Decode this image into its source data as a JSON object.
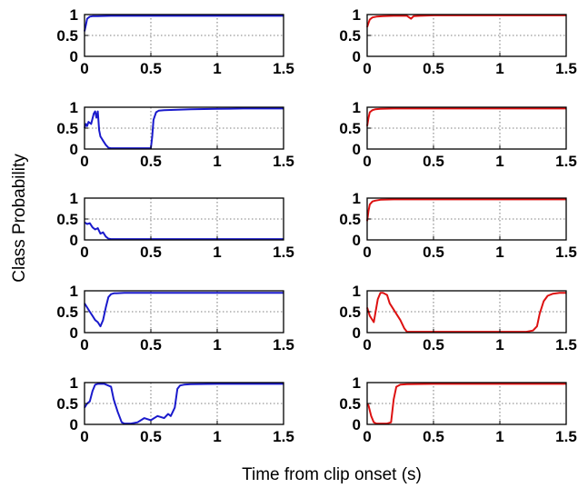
{
  "figure": {
    "ylabel": "Class Probability",
    "xlabel": "Time from clip onset (s)"
  },
  "chart_data": {
    "type": "line",
    "layout": "5 rows x 2 columns of small multiples",
    "xlabel": "Time from clip onset (s)",
    "ylabel": "Class Probability",
    "xlim": [
      0,
      1.5
    ],
    "ylim": [
      0,
      1
    ],
    "xticks": [
      "0",
      "0.5",
      "1",
      "1.5"
    ],
    "yticks": [
      "0",
      "0.5",
      "1"
    ],
    "grid": "dotted",
    "colors": {
      "left": "#1a1acc",
      "right": "#dd1111"
    },
    "panels": [
      {
        "row": 1,
        "col": "left",
        "color": "#1a1acc",
        "x": [
          0,
          0.01,
          0.02,
          0.04,
          0.06,
          0.1,
          0.2,
          0.3,
          0.5,
          1.0,
          1.5
        ],
        "y": [
          0.6,
          0.75,
          0.9,
          0.95,
          0.96,
          0.96,
          0.97,
          0.97,
          0.97,
          0.97,
          0.97
        ]
      },
      {
        "row": 1,
        "col": "right",
        "color": "#dd1111",
        "x": [
          0,
          0.01,
          0.02,
          0.04,
          0.07,
          0.12,
          0.2,
          0.3,
          0.33,
          0.35,
          0.4,
          0.5,
          1.0,
          1.5
        ],
        "y": [
          0.7,
          0.8,
          0.88,
          0.93,
          0.95,
          0.96,
          0.97,
          0.97,
          0.9,
          0.96,
          0.97,
          0.98,
          0.98,
          0.98
        ]
      },
      {
        "row": 2,
        "col": "left",
        "color": "#1a1acc",
        "x": [
          0,
          0.01,
          0.02,
          0.03,
          0.05,
          0.07,
          0.08,
          0.09,
          0.1,
          0.11,
          0.12,
          0.13,
          0.14,
          0.16,
          0.18,
          0.2,
          0.25,
          0.3,
          0.4,
          0.5,
          0.51,
          0.52,
          0.54,
          0.56,
          0.6,
          0.8,
          1.0,
          1.2,
          1.5
        ],
        "y": [
          0.5,
          0.6,
          0.55,
          0.65,
          0.6,
          0.85,
          0.9,
          0.75,
          0.9,
          0.45,
          0.3,
          0.25,
          0.2,
          0.1,
          0.03,
          0.02,
          0.02,
          0.02,
          0.02,
          0.02,
          0.3,
          0.7,
          0.88,
          0.92,
          0.93,
          0.95,
          0.96,
          0.97,
          0.97
        ]
      },
      {
        "row": 2,
        "col": "right",
        "color": "#dd1111",
        "x": [
          0,
          0.01,
          0.02,
          0.04,
          0.06,
          0.1,
          0.2,
          0.3,
          0.5,
          1.0,
          1.5
        ],
        "y": [
          0.55,
          0.75,
          0.88,
          0.93,
          0.95,
          0.96,
          0.97,
          0.97,
          0.97,
          0.97,
          0.97
        ]
      },
      {
        "row": 3,
        "col": "left",
        "color": "#1a1acc",
        "x": [
          0,
          0.02,
          0.04,
          0.06,
          0.08,
          0.1,
          0.12,
          0.14,
          0.16,
          0.18,
          0.2,
          0.3,
          0.5,
          1.0,
          1.5
        ],
        "y": [
          0.42,
          0.38,
          0.4,
          0.3,
          0.25,
          0.28,
          0.15,
          0.18,
          0.08,
          0.03,
          0.02,
          0.02,
          0.02,
          0.02,
          0.02
        ]
      },
      {
        "row": 3,
        "col": "right",
        "color": "#dd1111",
        "x": [
          0,
          0.01,
          0.02,
          0.04,
          0.06,
          0.1,
          0.2,
          0.3,
          0.5,
          1.0,
          1.5
        ],
        "y": [
          0.45,
          0.7,
          0.85,
          0.92,
          0.94,
          0.96,
          0.97,
          0.97,
          0.97,
          0.97,
          0.97
        ]
      },
      {
        "row": 4,
        "col": "left",
        "color": "#1a1acc",
        "x": [
          0,
          0.02,
          0.04,
          0.06,
          0.08,
          0.1,
          0.12,
          0.14,
          0.16,
          0.18,
          0.2,
          0.22,
          0.3,
          0.5,
          1.0,
          1.5
        ],
        "y": [
          0.7,
          0.6,
          0.5,
          0.4,
          0.3,
          0.25,
          0.15,
          0.3,
          0.6,
          0.85,
          0.92,
          0.94,
          0.95,
          0.95,
          0.95,
          0.95
        ]
      },
      {
        "row": 4,
        "col": "right",
        "color": "#dd1111",
        "x": [
          0,
          0.02,
          0.05,
          0.08,
          0.1,
          0.12,
          0.15,
          0.17,
          0.2,
          0.22,
          0.25,
          0.28,
          0.3,
          0.5,
          0.8,
          1.0,
          1.2,
          1.25,
          1.28,
          1.3,
          1.33,
          1.36,
          1.4,
          1.45,
          1.5
        ],
        "y": [
          0.6,
          0.4,
          0.25,
          0.8,
          0.95,
          0.95,
          0.9,
          0.7,
          0.55,
          0.45,
          0.3,
          0.1,
          0.02,
          0.02,
          0.02,
          0.02,
          0.02,
          0.05,
          0.15,
          0.45,
          0.75,
          0.88,
          0.93,
          0.95,
          0.95
        ]
      },
      {
        "row": 5,
        "col": "left",
        "color": "#1a1acc",
        "x": [
          0,
          0.02,
          0.04,
          0.06,
          0.08,
          0.1,
          0.15,
          0.2,
          0.22,
          0.25,
          0.28,
          0.3,
          0.35,
          0.4,
          0.45,
          0.5,
          0.55,
          0.6,
          0.63,
          0.65,
          0.68,
          0.7,
          0.72,
          0.75,
          0.8,
          1.0,
          1.5
        ],
        "y": [
          0.4,
          0.5,
          0.55,
          0.8,
          0.95,
          0.97,
          0.97,
          0.9,
          0.6,
          0.3,
          0.05,
          0.02,
          0.02,
          0.05,
          0.15,
          0.1,
          0.2,
          0.15,
          0.25,
          0.2,
          0.4,
          0.85,
          0.93,
          0.95,
          0.96,
          0.97,
          0.97
        ]
      },
      {
        "row": 5,
        "col": "right",
        "color": "#dd1111",
        "x": [
          0,
          0.01,
          0.03,
          0.05,
          0.07,
          0.1,
          0.15,
          0.18,
          0.2,
          0.22,
          0.25,
          0.3,
          0.5,
          1.0,
          1.5
        ],
        "y": [
          0.5,
          0.45,
          0.2,
          0.05,
          0.02,
          0.02,
          0.02,
          0.05,
          0.6,
          0.9,
          0.95,
          0.96,
          0.97,
          0.97,
          0.97
        ]
      }
    ]
  }
}
